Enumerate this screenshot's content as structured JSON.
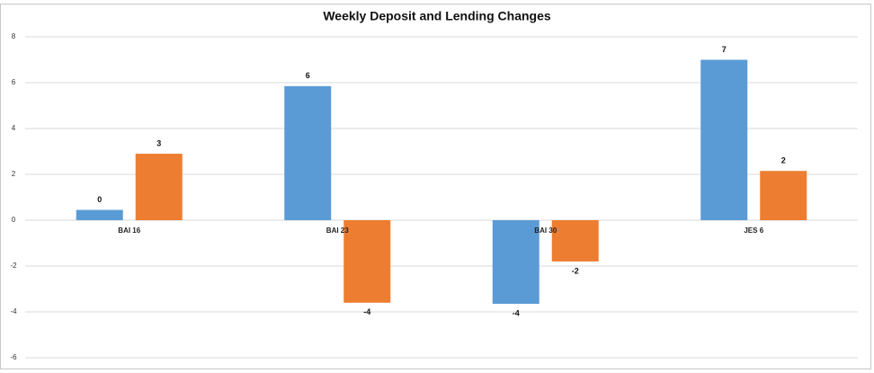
{
  "chart_data": {
    "type": "bar",
    "title": "Weekly Deposit and Lending Changes",
    "categories": [
      "BAI 16",
      "BAI 23",
      "BAI 30",
      "JES 6"
    ],
    "series": [
      {
        "color": "#5b9bd5",
        "values": [
          0.45,
          5.85,
          -3.65,
          7.0
        ],
        "value_labels": [
          "0",
          "6",
          "-4",
          "7"
        ]
      },
      {
        "color": "#ed7d31",
        "values": [
          2.9,
          -3.6,
          -1.8,
          2.15
        ],
        "value_labels": [
          "3",
          "-4",
          "-2",
          "2"
        ]
      }
    ],
    "ylim": [
      -6,
      8
    ],
    "yticks": [
      -6,
      -4,
      -2,
      0,
      2,
      4,
      6,
      8
    ],
    "grid": true
  }
}
